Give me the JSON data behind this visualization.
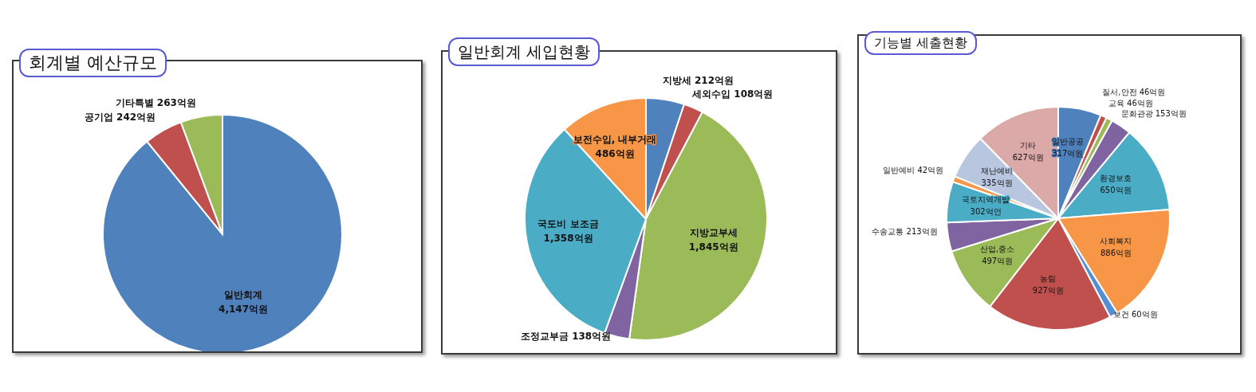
{
  "chart_data": [
    {
      "type": "pie",
      "title": "회계별 예산규모",
      "categories": [
        "일반회계",
        "공기업",
        "기타특별"
      ],
      "values": [
        4147,
        242,
        263
      ],
      "value_labels": [
        "4,147억원",
        "242억원",
        "263억원"
      ],
      "colors": [
        "#4f81bd",
        "#c0504d",
        "#9bbb59"
      ]
    },
    {
      "type": "pie",
      "title": "일반회계 세입현황",
      "categories": [
        "지방세",
        "세외수입",
        "지방교부세",
        "조정교부금",
        "국도비 보조금",
        "보전수입, 내부거래"
      ],
      "values": [
        212,
        108,
        1845,
        138,
        1358,
        486
      ],
      "value_labels": [
        "212억원",
        "108억원",
        "1,845억원",
        "138억원",
        "1,358억원",
        "486억원"
      ],
      "colors": [
        "#4f81bd",
        "#c0504d",
        "#9bbb59",
        "#8064a2",
        "#4bacc6",
        "#f79646"
      ]
    },
    {
      "type": "pie",
      "title": "기능별 세출현황",
      "categories": [
        "일반공공",
        "질서,안전",
        "교육",
        "문화관광",
        "환경보호",
        "사회복지",
        "보건",
        "농림",
        "산업,중소",
        "수송교통",
        "국토지역개발",
        "일반예비",
        "재난예비",
        "기타"
      ],
      "values": [
        317,
        46,
        46,
        153,
        650,
        886,
        60,
        927,
        497,
        213,
        302,
        42,
        335,
        627
      ],
      "value_labels": [
        "317억원",
        "46억원",
        "46억원",
        "153억원",
        "650억원",
        "886억원",
        "60억원",
        "927억원",
        "497억원",
        "213억원",
        "302억언",
        "42억원",
        "335억원",
        "627억원"
      ],
      "colors": [
        "#4f81bd",
        "#c0504d",
        "#9bbb59",
        "#8064a2",
        "#4bacc6",
        "#f79646",
        "#558ed5",
        "#c0504d",
        "#9bbb59",
        "#8064a2",
        "#4bacc6",
        "#f79646",
        "#b9c6e0",
        "#dba9a8"
      ]
    }
  ]
}
